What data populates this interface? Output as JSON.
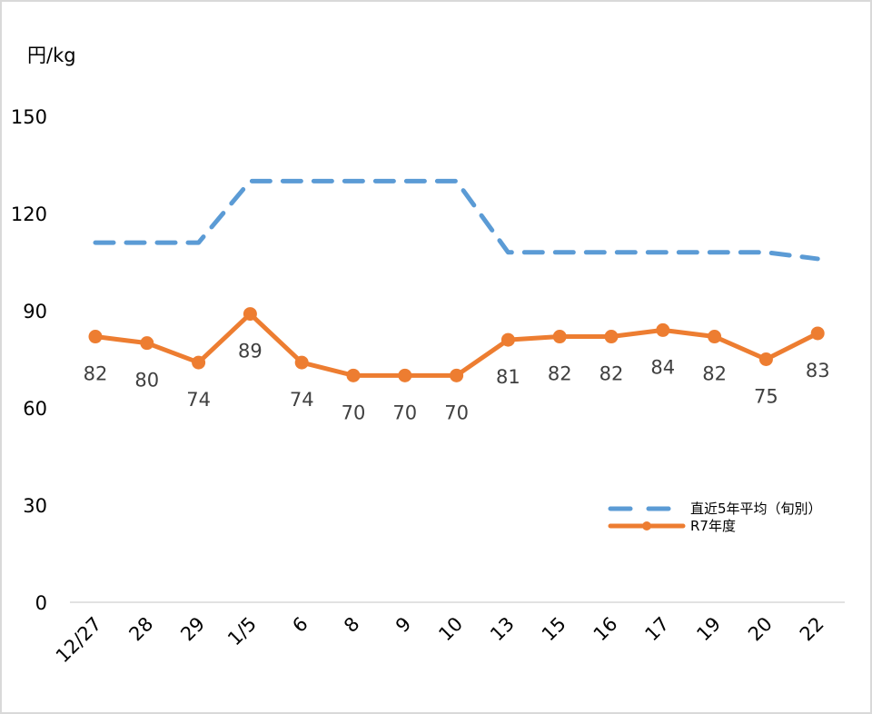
{
  "chart": {
    "unit_label": "円/kg",
    "legend": {
      "avg_label": "直近5年平均（旬別）",
      "current_label": "R7年度"
    },
    "colors": {
      "avg": "#5b9bd5",
      "current": "#ed7d31",
      "axis_line": "#d9d9d9",
      "border": "#d9d9d9"
    }
  },
  "chart_data": {
    "type": "line",
    "title": "",
    "xlabel": "",
    "ylabel": "円/kg",
    "ylim": [
      0,
      150
    ],
    "yticks": [
      0,
      30,
      60,
      90,
      120,
      150
    ],
    "grid": false,
    "legend_position": "right-bottom-inside",
    "categories": [
      "12/27",
      "28",
      "29",
      "1/5",
      "6",
      "8",
      "9",
      "10",
      "13",
      "15",
      "16",
      "17",
      "19",
      "20",
      "22"
    ],
    "series": [
      {
        "name": "直近5年平均（旬別）",
        "style": "dashed",
        "color": "#5b9bd5",
        "values": [
          111,
          111,
          111,
          130,
          130,
          130,
          130,
          130,
          108,
          108,
          108,
          108,
          108,
          108,
          106
        ]
      },
      {
        "name": "R7年度",
        "style": "solid-markers",
        "color": "#ed7d31",
        "values": [
          82,
          80,
          74,
          89,
          74,
          70,
          70,
          70,
          81,
          82,
          82,
          84,
          82,
          75,
          83
        ],
        "data_labels": [
          "82",
          "80",
          "74",
          "89",
          "74",
          "70",
          "70",
          "70",
          "81",
          "82",
          "82",
          "84",
          "82",
          "75",
          "83"
        ]
      }
    ]
  }
}
